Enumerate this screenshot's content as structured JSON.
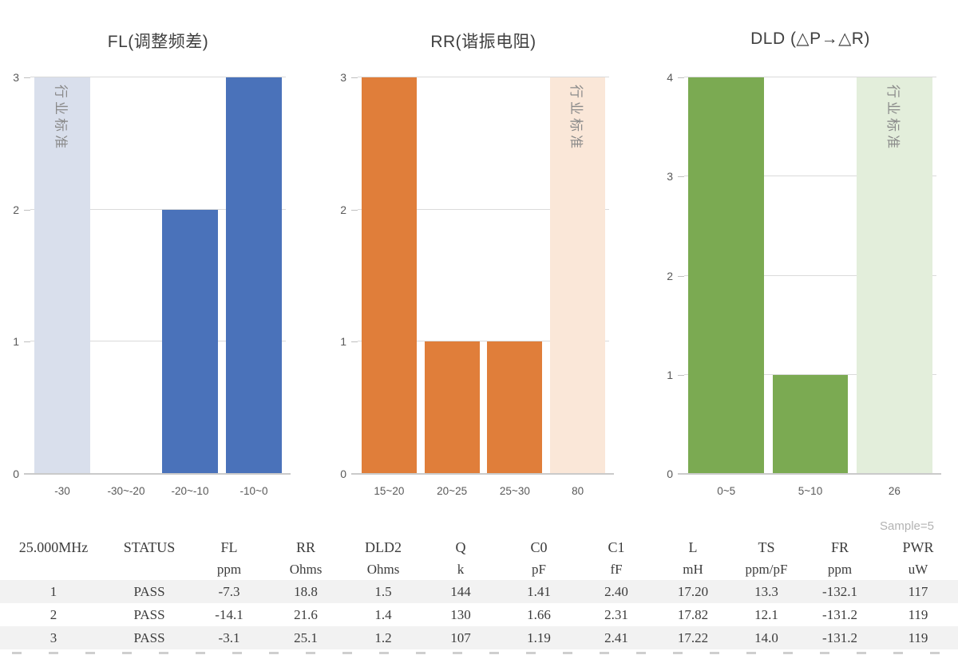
{
  "chart_data": [
    {
      "type": "bar",
      "title": "FL(调整频差)",
      "categories": [
        "-30",
        "-30~-20",
        "-20~-10",
        "-10~0"
      ],
      "values": [
        3,
        0,
        2,
        3
      ],
      "xlabel": "",
      "ylabel": "",
      "ylim": [
        0,
        3
      ],
      "yticks": [
        0,
        1,
        2,
        3
      ],
      "grid": true,
      "legend": false,
      "bar_colors": [
        "#d9dfec",
        "#4a72ba",
        "#4a72ba",
        "#4a72ba"
      ],
      "standard_bar_index": 0,
      "standard_label": "行业标准"
    },
    {
      "type": "bar",
      "title": "RR(谐振电阻)",
      "categories": [
        "15~20",
        "20~25",
        "25~30",
        "80"
      ],
      "values": [
        3,
        1,
        1,
        3
      ],
      "xlabel": "",
      "ylabel": "",
      "ylim": [
        0,
        3
      ],
      "yticks": [
        0,
        1,
        2,
        3
      ],
      "grid": true,
      "legend": false,
      "bar_colors": [
        "#e07e3a",
        "#e07e3a",
        "#e07e3a",
        "#fae7d8"
      ],
      "standard_bar_index": 3,
      "standard_label": "行业标准"
    },
    {
      "type": "bar",
      "title": "DLD (△P→△R)",
      "categories": [
        "0~5",
        "5~10",
        "26"
      ],
      "values": [
        4,
        1,
        4
      ],
      "xlabel": "",
      "ylabel": "",
      "ylim": [
        0,
        4
      ],
      "yticks": [
        0,
        1,
        2,
        3,
        4
      ],
      "grid": true,
      "legend": false,
      "bar_colors": [
        "#7baa52",
        "#7baa52",
        "#e3eedb"
      ],
      "standard_bar_index": 2,
      "standard_label": "行业标准"
    }
  ],
  "table": {
    "sample_label": "Sample=5",
    "columns": [
      {
        "label": "25.000MHz",
        "unit": ""
      },
      {
        "label": "STATUS",
        "unit": ""
      },
      {
        "label": "FL",
        "unit": "ppm"
      },
      {
        "label": "RR",
        "unit": "Ohms"
      },
      {
        "label": "DLD2",
        "unit": "Ohms"
      },
      {
        "label": "Q",
        "unit": "k"
      },
      {
        "label": "C0",
        "unit": "pF"
      },
      {
        "label": "C1",
        "unit": "fF"
      },
      {
        "label": "L",
        "unit": "mH"
      },
      {
        "label": "TS",
        "unit": "ppm/pF"
      },
      {
        "label": "FR",
        "unit": "ppm"
      },
      {
        "label": "PWR",
        "unit": "uW"
      }
    ],
    "rows": [
      [
        "1",
        "PASS",
        "-7.3",
        "18.8",
        "1.5",
        "144",
        "1.41",
        "2.40",
        "17.20",
        "13.3",
        "-132.1",
        "117"
      ],
      [
        "2",
        "PASS",
        "-14.1",
        "21.6",
        "1.4",
        "130",
        "1.66",
        "2.31",
        "17.82",
        "12.1",
        "-131.2",
        "119"
      ],
      [
        "3",
        "PASS",
        "-3.1",
        "25.1",
        "1.2",
        "107",
        "1.19",
        "2.41",
        "17.22",
        "14.0",
        "-131.2",
        "119"
      ]
    ]
  },
  "colors": {
    "blue": "#4a72ba",
    "blue_light": "#d9dfec",
    "orange": "#e07e3a",
    "orange_light": "#fae7d8",
    "green": "#7baa52",
    "green_light": "#e3eedb",
    "gridline": "#dadada",
    "axis_text": "#595959",
    "row_stripe": "#f2f2f2",
    "standard_label_text": "#8a8a8a"
  }
}
